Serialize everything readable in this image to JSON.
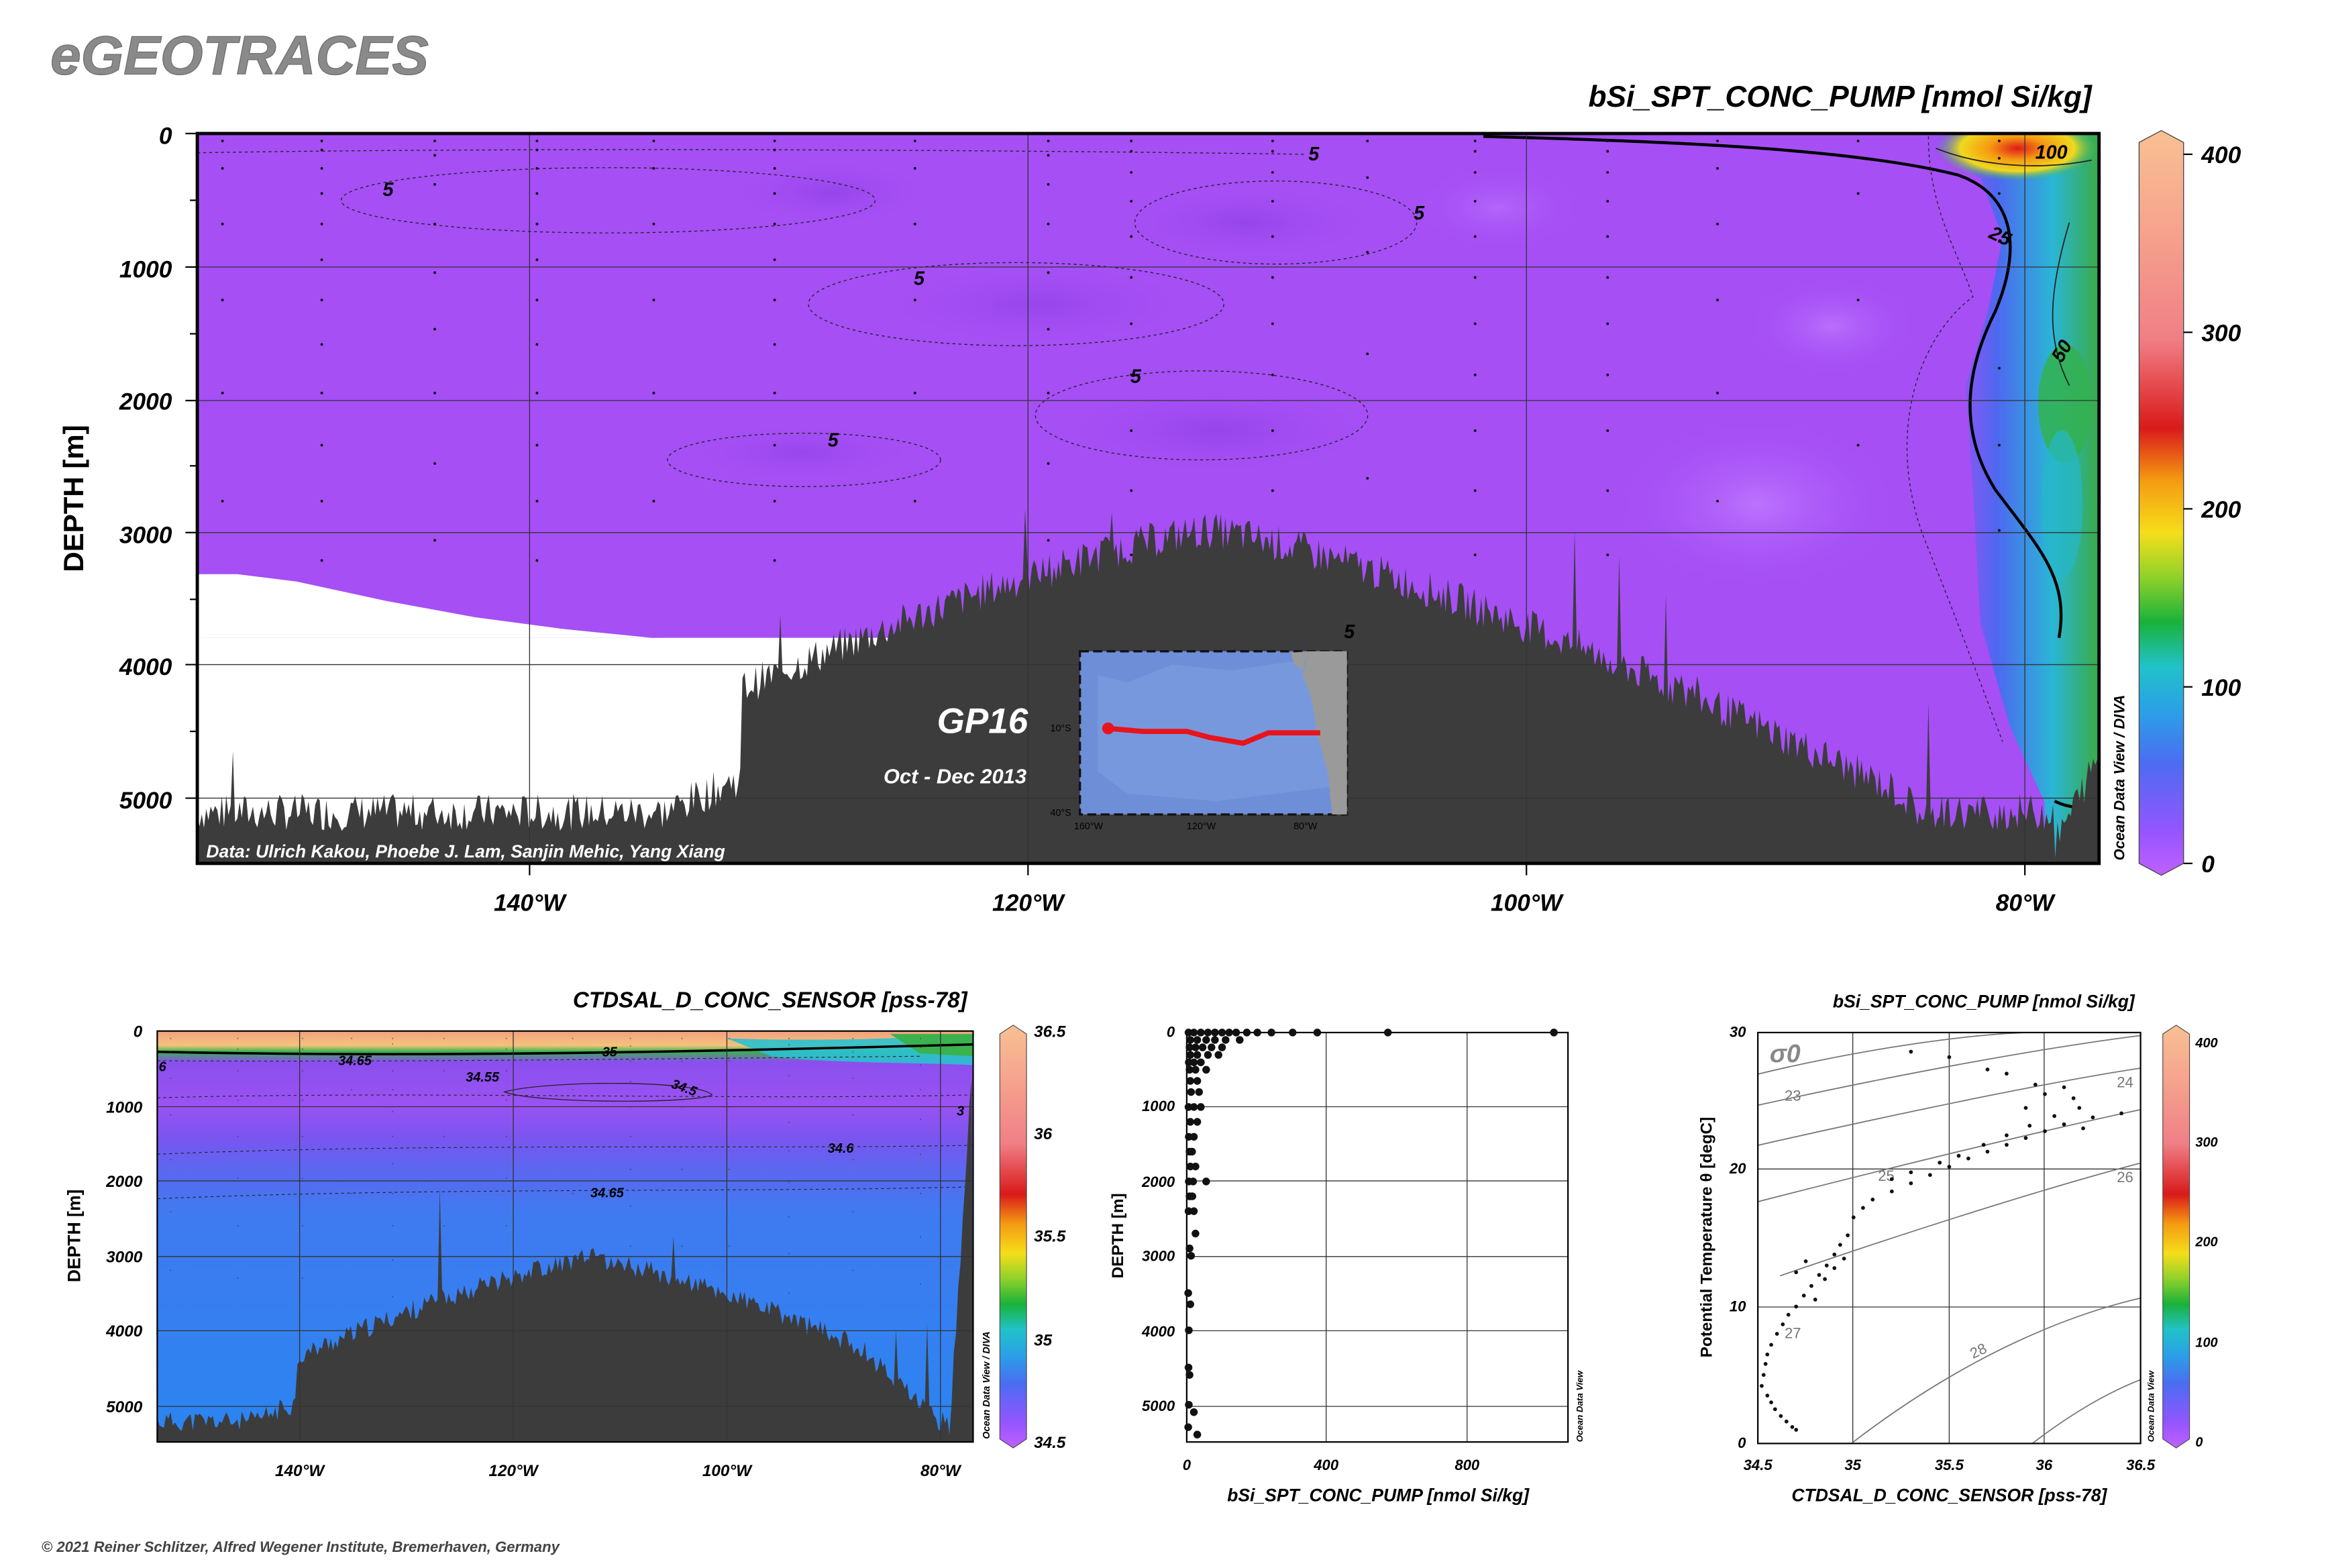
{
  "brand": "eGEOTRACES",
  "copyright": "© 2021 Reiner Schlitzer, Alfred Wegener Institute, Bremerhaven, Germany",
  "colors": {
    "seafloor": "#3c3c3c",
    "section_fill": "#a54ff5",
    "cruise_track": "#e8141b",
    "map_ocean": "#6e8ed8"
  },
  "main_section": {
    "title": "bSi_SPT_CONC_PUMP [nmol Si/kg]",
    "ylabel": "DEPTH [m]",
    "y_ticks": [
      "0",
      "1000",
      "2000",
      "3000",
      "4000",
      "5000"
    ],
    "x_ticks": [
      "140°W",
      "120°W",
      "100°W",
      "80°W"
    ],
    "colorbar_ticks": [
      "400",
      "300",
      "200",
      "100",
      "0"
    ],
    "colorbar_label": "Ocean Data View / DIVA",
    "data_credit": "Data: Ulrich Kakou, Phoebe J. Lam, Sanjin Mehic, Yang Xiang",
    "cruise_name": "GP16",
    "cruise_dates": "Oct - Dec 2013",
    "contour_labels": [
      "5",
      "5",
      "5",
      "5",
      "5",
      "5",
      "5",
      "25",
      "50",
      "100"
    ],
    "inset_map": {
      "lat_labels": [
        "10°S",
        "40°S"
      ],
      "lon_labels": [
        "160°W",
        "120°W",
        "80°W"
      ]
    }
  },
  "sal_section": {
    "title": "CTDSAL_D_CONC_SENSOR [pss-78]",
    "ylabel": "DEPTH [m]",
    "y_ticks": [
      "0",
      "1000",
      "2000",
      "3000",
      "4000",
      "5000"
    ],
    "x_ticks": [
      "140°W",
      "120°W",
      "100°W",
      "80°W"
    ],
    "colorbar_ticks": [
      "36.5",
      "36",
      "35.5",
      "35",
      "34.5"
    ],
    "colorbar_label": "Ocean Data View / DIVA",
    "contour_labels": [
      "34.65",
      "34.55",
      "34.5",
      "34.6",
      "34.65",
      "35",
      "3",
      "6"
    ]
  },
  "profile_plot": {
    "xlabel": "bSi_SPT_CONC_PUMP [nmol Si/kg]",
    "ylabel": "DEPTH [m]",
    "x_ticks": [
      "0",
      "400",
      "800"
    ],
    "y_ticks": [
      "0",
      "1000",
      "2000",
      "3000",
      "4000",
      "5000"
    ],
    "side_label": "Ocean Data View"
  },
  "ts_plot": {
    "title": "bSi_SPT_CONC_PUMP [nmol Si/kg]",
    "xlabel": "CTDSAL_D_CONC_SENSOR [pss-78]",
    "ylabel": "Potential Temperature θ [degC]",
    "x_ticks": [
      "34.5",
      "35",
      "35.5",
      "36",
      "36.5"
    ],
    "y_ticks": [
      "30",
      "20",
      "10",
      "0"
    ],
    "sigma_label": "σ0",
    "isopycnal_labels": [
      "23",
      "24",
      "25",
      "26",
      "27",
      "28"
    ],
    "colorbar_ticks": [
      "400",
      "300",
      "200",
      "100",
      "0"
    ],
    "colorbar_label": "Ocean Data View"
  },
  "chart_data": [
    {
      "type": "heatmap",
      "title": "bSi_SPT_CONC_PUMP [nmol Si/kg]",
      "ylabel": "DEPTH [m]",
      "xlabel": "",
      "x_range_deg": [
        -153,
        -77
      ],
      "ylim": [
        5500,
        0
      ],
      "x_ticks": [
        -140,
        -120,
        -100,
        -80
      ],
      "colorbar_range": [
        0,
        420
      ],
      "contour_levels": [
        5,
        25,
        50,
        100
      ],
      "max_concentration_region": {
        "lon": -79,
        "depth": 100,
        "value": 100
      }
    },
    {
      "type": "heatmap",
      "title": "CTDSAL_D_CONC_SENSOR [pss-78]",
      "ylabel": "DEPTH [m]",
      "x_range_deg": [
        -153,
        -77
      ],
      "ylim": [
        5500,
        0
      ],
      "colorbar_range": [
        34.5,
        36.5
      ],
      "contour_levels": [
        34.5,
        34.55,
        34.6,
        34.65,
        35
      ]
    },
    {
      "type": "scatter",
      "xlabel": "bSi_SPT_CONC_PUMP [nmol Si/kg]",
      "ylabel": "DEPTH [m]",
      "xlim": [
        0,
        1080
      ],
      "ylim": [
        5500,
        0
      ],
      "points": [
        [
          5,
          0
        ],
        [
          20,
          0
        ],
        [
          40,
          0
        ],
        [
          60,
          0
        ],
        [
          80,
          0
        ],
        [
          100,
          0
        ],
        [
          120,
          0
        ],
        [
          140,
          0
        ],
        [
          170,
          0
        ],
        [
          200,
          0
        ],
        [
          240,
          0
        ],
        [
          300,
          0
        ],
        [
          370,
          0
        ],
        [
          570,
          0
        ],
        [
          1040,
          0
        ],
        [
          10,
          100
        ],
        [
          30,
          100
        ],
        [
          55,
          100
        ],
        [
          80,
          100
        ],
        [
          110,
          100
        ],
        [
          150,
          100
        ],
        [
          8,
          200
        ],
        [
          25,
          200
        ],
        [
          45,
          200
        ],
        [
          70,
          200
        ],
        [
          100,
          200
        ],
        [
          10,
          300
        ],
        [
          30,
          300
        ],
        [
          60,
          300
        ],
        [
          90,
          300
        ],
        [
          6,
          400
        ],
        [
          20,
          400
        ],
        [
          40,
          400
        ],
        [
          8,
          500
        ],
        [
          25,
          500
        ],
        [
          55,
          500
        ],
        [
          10,
          650
        ],
        [
          30,
          650
        ],
        [
          12,
          800
        ],
        [
          35,
          800
        ],
        [
          5,
          1000
        ],
        [
          20,
          1000
        ],
        [
          40,
          1000
        ],
        [
          10,
          1200
        ],
        [
          30,
          1200
        ],
        [
          6,
          1400
        ],
        [
          20,
          1400
        ],
        [
          8,
          1600
        ],
        [
          15,
          1600
        ],
        [
          10,
          1800
        ],
        [
          25,
          1800
        ],
        [
          6,
          2000
        ],
        [
          18,
          2000
        ],
        [
          55,
          2000
        ],
        [
          8,
          2200
        ],
        [
          16,
          2200
        ],
        [
          5,
          2400
        ],
        [
          20,
          2400
        ],
        [
          25,
          2700
        ],
        [
          8,
          2900
        ],
        [
          12,
          3000
        ],
        [
          4,
          3500
        ],
        [
          10,
          3650
        ],
        [
          6,
          4000
        ],
        [
          5,
          4500
        ],
        [
          8,
          4600
        ],
        [
          6,
          5000
        ],
        [
          20,
          5100
        ],
        [
          4,
          5300
        ],
        [
          30,
          5400
        ]
      ]
    },
    {
      "type": "scatter",
      "xlabel": "CTDSAL_D_CONC_SENSOR [pss-78]",
      "ylabel": "Potential Temperature θ [degC]",
      "xlim": [
        34.5,
        36.5
      ],
      "ylim": [
        0,
        30
      ],
      "points": [
        [
          34.52,
          4.2
        ],
        [
          34.53,
          5.0
        ],
        [
          34.54,
          5.8
        ],
        [
          34.55,
          6.5
        ],
        [
          34.57,
          7.2
        ],
        [
          34.6,
          8.0
        ],
        [
          34.63,
          8.7
        ],
        [
          34.66,
          9.4
        ],
        [
          34.7,
          10.0
        ],
        [
          34.74,
          10.8
        ],
        [
          34.78,
          11.5
        ],
        [
          34.82,
          12.3
        ],
        [
          34.86,
          13.0
        ],
        [
          34.9,
          13.8
        ],
        [
          34.93,
          14.5
        ],
        [
          34.97,
          15.2
        ],
        [
          35.0,
          16.5
        ],
        [
          35.05,
          17.2
        ],
        [
          35.1,
          17.8
        ],
        [
          35.2,
          18.4
        ],
        [
          35.3,
          19.0
        ],
        [
          35.4,
          19.6
        ],
        [
          35.5,
          20.2
        ],
        [
          35.6,
          20.8
        ],
        [
          35.7,
          21.3
        ],
        [
          35.8,
          21.8
        ],
        [
          35.9,
          22.3
        ],
        [
          36.0,
          22.8
        ],
        [
          36.1,
          23.3
        ],
        [
          36.25,
          23.8
        ],
        [
          36.4,
          24.1
        ],
        [
          35.2,
          19.3
        ],
        [
          35.3,
          19.8
        ],
        [
          35.45,
          20.5
        ],
        [
          35.55,
          21.0
        ],
        [
          35.68,
          21.8
        ],
        [
          35.8,
          22.5
        ],
        [
          35.92,
          23.2
        ],
        [
          36.05,
          23.9
        ],
        [
          36.18,
          24.5
        ],
        [
          35.9,
          24.5
        ],
        [
          36.0,
          25.5
        ],
        [
          36.1,
          26.0
        ],
        [
          35.8,
          27.0
        ],
        [
          35.7,
          27.3
        ],
        [
          35.5,
          28.2
        ],
        [
          35.3,
          28.6
        ],
        [
          36.15,
          25.2
        ],
        [
          36.2,
          23.0
        ],
        [
          35.95,
          26.2
        ],
        [
          34.55,
          3.5
        ],
        [
          34.57,
          3.0
        ],
        [
          34.59,
          2.5
        ],
        [
          34.62,
          2.0
        ],
        [
          34.65,
          1.6
        ],
        [
          34.68,
          1.2
        ],
        [
          34.7,
          1.0
        ],
        [
          34.8,
          10.5
        ],
        [
          34.85,
          12.0
        ],
        [
          34.9,
          12.8
        ],
        [
          34.95,
          13.5
        ],
        [
          34.7,
          12.5
        ],
        [
          34.75,
          13.3
        ]
      ]
    }
  ]
}
